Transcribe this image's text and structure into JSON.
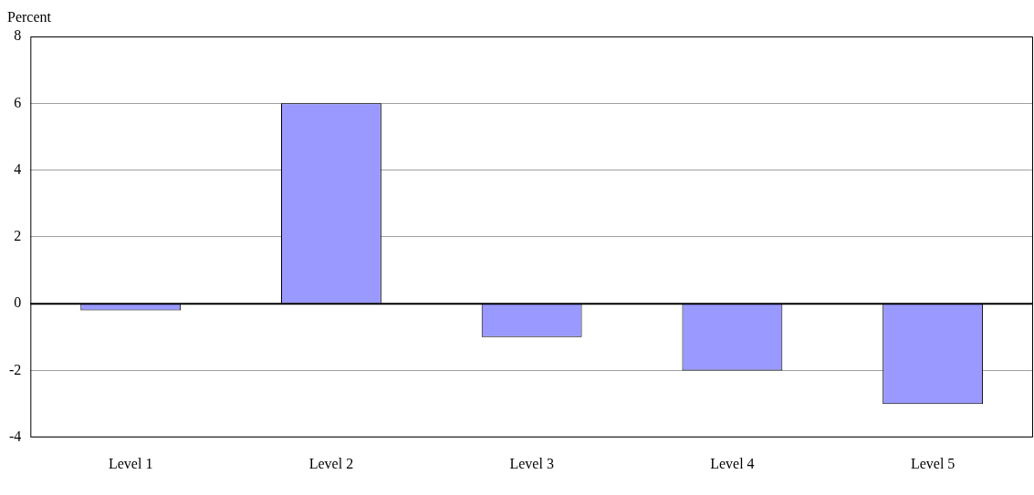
{
  "chart_data": {
    "type": "bar",
    "ylabel": "Percent",
    "categories": [
      "Level 1",
      "Level 2",
      "Level 3",
      "Level 4",
      "Level 5"
    ],
    "values": [
      -0.2,
      6,
      -1,
      -2,
      -3
    ],
    "color": "#9999ff",
    "ylim": [
      -4,
      8
    ],
    "yticks": [
      -4,
      -2,
      0,
      2,
      4,
      6,
      8
    ],
    "grid": "y",
    "legend": false
  }
}
